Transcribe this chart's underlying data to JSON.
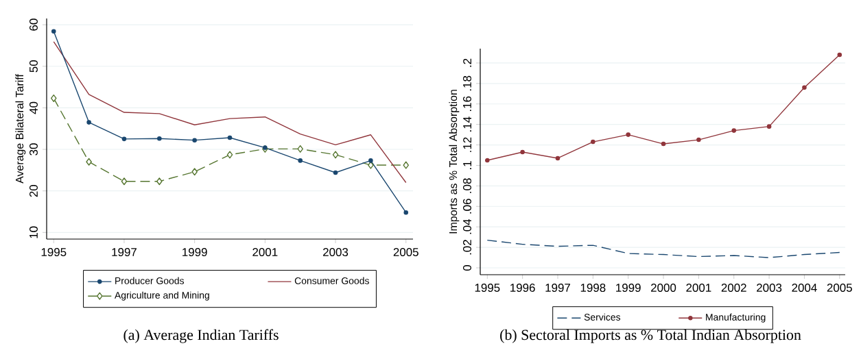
{
  "chart_data": [
    {
      "type": "line",
      "ylabel": "Average Bilateral Tariff",
      "annotations": [
        "(a) Average Indian Tariffs"
      ],
      "x": [
        1995,
        1996,
        1997,
        1998,
        1999,
        2000,
        2001,
        2002,
        2003,
        2004,
        2005
      ],
      "xlim": [
        1994.8,
        2005.2
      ],
      "xticks": [
        1995,
        1997,
        1999,
        2001,
        2003,
        2005
      ],
      "ylim": [
        8.4,
        61.5
      ],
      "yticks": [
        10,
        20,
        30,
        40,
        50,
        60
      ],
      "grid": "y",
      "legend": "bottom",
      "series": [
        {
          "name": "Producer Goods",
          "color": "#1a476f",
          "marker": "circle",
          "line_style": "solid",
          "values": [
            58.4,
            36.5,
            32.5,
            32.6,
            32.2,
            32.8,
            30.4,
            27.3,
            24.4,
            27.3,
            14.8
          ]
        },
        {
          "name": "Consumer Goods",
          "color": "#90353b",
          "marker": "none",
          "line_style": "solid",
          "values": [
            55.9,
            43.2,
            38.9,
            38.6,
            35.9,
            37.4,
            37.8,
            33.7,
            31.1,
            33.5,
            22.0
          ]
        },
        {
          "name": "Agriculture and Mining",
          "color": "#55752f",
          "marker": "diamond",
          "line_style": "dashed",
          "values": [
            42.3,
            27.0,
            22.3,
            22.3,
            24.6,
            28.7,
            30.1,
            30.1,
            28.7,
            26.2,
            26.2
          ]
        }
      ]
    },
    {
      "type": "line",
      "ylabel": "Imports as % Total Absorption",
      "annotations": [
        "(b) Sectoral Imports as % Total Indian Absorption"
      ],
      "x": [
        1995,
        1996,
        1997,
        1998,
        1999,
        2000,
        2001,
        2002,
        2003,
        2004,
        2005
      ],
      "xlim": [
        1994.8,
        2005.16
      ],
      "xticks": [
        1995,
        1996,
        1997,
        1998,
        1999,
        2000,
        2001,
        2002,
        2003,
        2004,
        2005
      ],
      "ylim": [
        -0.0067,
        0.214
      ],
      "yticks": [
        0,
        {
          "value": 0.02,
          "label": ".02"
        },
        {
          "value": 0.04,
          "label": ".04"
        },
        {
          "value": 0.06,
          "label": ".06"
        },
        {
          "value": 0.08,
          "label": ".08"
        },
        {
          "value": 0.1,
          "label": ".1"
        },
        {
          "value": 0.12,
          "label": ".12"
        },
        {
          "value": 0.14,
          "label": ".14"
        },
        {
          "value": 0.16,
          "label": ".16"
        },
        {
          "value": 0.18,
          "label": ".18"
        },
        {
          "value": 0.2,
          "label": ".2"
        }
      ],
      "grid": "y",
      "legend": "bottom",
      "series": [
        {
          "name": "Services",
          "color": "#1a476f",
          "marker": "none",
          "line_style": "dashed",
          "values": [
            0.027,
            0.023,
            0.021,
            0.022,
            0.014,
            0.013,
            0.011,
            0.012,
            0.01,
            0.013,
            0.015
          ]
        },
        {
          "name": "Manufacturing",
          "color": "#90353b",
          "marker": "circle",
          "line_style": "solid",
          "values": [
            0.105,
            0.113,
            0.107,
            0.123,
            0.13,
            0.121,
            0.125,
            0.134,
            0.138,
            0.176,
            0.208
          ]
        }
      ]
    }
  ]
}
